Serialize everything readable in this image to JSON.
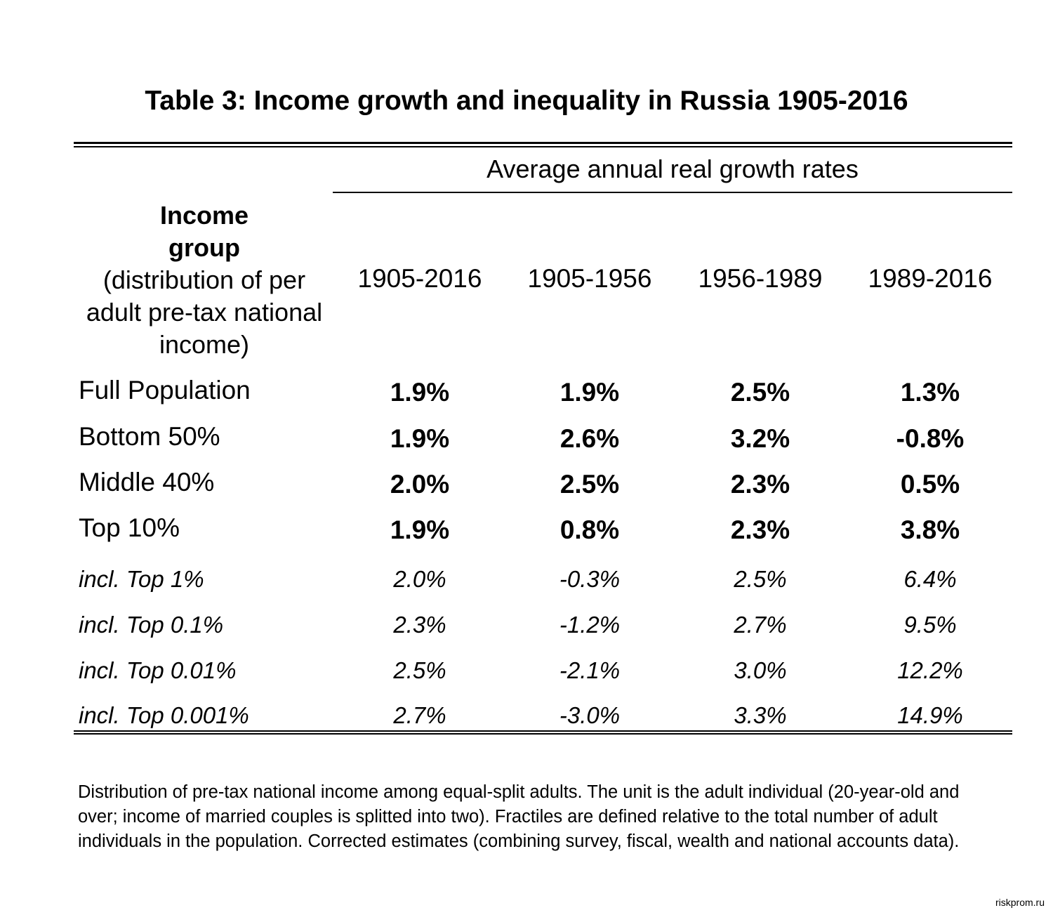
{
  "title": "Table 3: Income growth and inequality in Russia 1905-2016",
  "header": {
    "span_label": "Average annual real growth rates",
    "group_label_bold_1": "Income",
    "group_label_bold_2": "group",
    "group_label_line_1": "(distribution of per",
    "group_label_line_2": "adult pre-tax national",
    "group_label_line_3": "income)",
    "columns": [
      "1905-2016",
      "1905-1956",
      "1956-1989",
      "1989-2016"
    ]
  },
  "rows": [
    {
      "label": "Full Population",
      "values": [
        "1.9%",
        "1.9%",
        "2.5%",
        "1.3%"
      ]
    },
    {
      "label": "Bottom 50%",
      "values": [
        "1.9%",
        "2.6%",
        "3.2%",
        "-0.8%"
      ]
    },
    {
      "label": "Middle 40%",
      "values": [
        "2.0%",
        "2.5%",
        "2.3%",
        "0.5%"
      ]
    },
    {
      "label": "Top 10%",
      "values": [
        "1.9%",
        "0.8%",
        "2.3%",
        "3.8%"
      ]
    },
    {
      "label": "incl. Top 1%",
      "values": [
        "2.0%",
        "-0.3%",
        "2.5%",
        "6.4%"
      ]
    },
    {
      "label": "incl. Top 0.1%",
      "values": [
        "2.3%",
        "-1.2%",
        "2.7%",
        "9.5%"
      ]
    },
    {
      "label": "incl. Top 0.01%",
      "values": [
        "2.5%",
        "-2.1%",
        "3.0%",
        "12.2%"
      ]
    },
    {
      "label": "incl. Top 0.001%",
      "values": [
        "2.7%",
        "-3.0%",
        "3.3%",
        "14.9%"
      ]
    }
  ],
  "note": "Distribution of pre-tax national income among equal-split adults. The unit is the adult individual (20-year-old and over; income of married couples is splitted into two). Fractiles are defined relative to the total number of adult individuals in the population. Corrected estimates (combining survey, fiscal, wealth and national accounts data).",
  "watermark": "riskprom.ru"
}
